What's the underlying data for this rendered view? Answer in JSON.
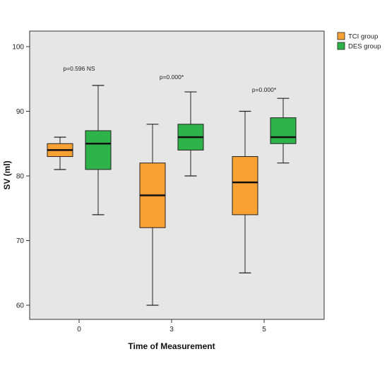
{
  "chart_data": {
    "type": "boxplot",
    "xlabel": "Time of Measurement",
    "ylabel": "SV (ml)",
    "categories": [
      "0",
      "3",
      "5"
    ],
    "ylim": [
      58,
      102
    ],
    "yticks": [
      "60",
      "70",
      "80",
      "90",
      "100"
    ],
    "background": "#e6e6e6",
    "grid": false,
    "legend_position": "outside-top-right",
    "series": [
      {
        "name": "TCI group",
        "color": "#f7a233",
        "boxes": [
          {
            "category": "0",
            "whisker_low": 81,
            "q1": 83,
            "median": 84,
            "q3": 85,
            "whisker_high": 86
          },
          {
            "category": "3",
            "whisker_low": 60,
            "q1": 72,
            "median": 77,
            "q3": 82,
            "whisker_high": 88
          },
          {
            "category": "5",
            "whisker_low": 65,
            "q1": 74,
            "median": 79,
            "q3": 83,
            "whisker_high": 90
          }
        ]
      },
      {
        "name": "DES group",
        "color": "#2eb34a",
        "boxes": [
          {
            "category": "0",
            "whisker_low": 74,
            "q1": 81,
            "median": 85,
            "q3": 87,
            "whisker_high": 94
          },
          {
            "category": "3",
            "whisker_low": 80,
            "q1": 84,
            "median": 86,
            "q3": 88,
            "whisker_high": 93
          },
          {
            "category": "5",
            "whisker_low": 82,
            "q1": 85,
            "median": 86,
            "q3": 89,
            "whisker_high": 92
          }
        ]
      }
    ],
    "annotations": [
      {
        "category": "0",
        "y": 96.3,
        "text": "p=0.596 NS"
      },
      {
        "category": "3",
        "y": 95.0,
        "text": "p=0.000*"
      },
      {
        "category": "5",
        "y": 93.0,
        "text": "p=0.000*"
      }
    ]
  }
}
